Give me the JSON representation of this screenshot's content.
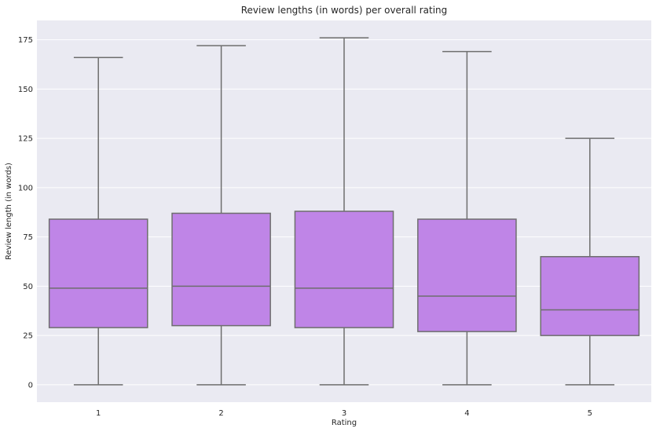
{
  "chart_data": {
    "type": "box",
    "title": "Review lengths (in words) per overall rating",
    "xlabel": "Rating",
    "ylabel": "Review length (in words)",
    "categories": [
      "1",
      "2",
      "3",
      "4",
      "5"
    ],
    "boxes": [
      {
        "category": "1",
        "whisker_low": 0,
        "q1": 29,
        "median": 49,
        "q3": 84,
        "whisker_high": 166
      },
      {
        "category": "2",
        "whisker_low": 0,
        "q1": 30,
        "median": 50,
        "q3": 87,
        "whisker_high": 172
      },
      {
        "category": "3",
        "whisker_low": 0,
        "q1": 29,
        "median": 49,
        "q3": 88,
        "whisker_high": 176
      },
      {
        "category": "4",
        "whisker_low": 0,
        "q1": 27,
        "median": 45,
        "q3": 84,
        "whisker_high": 169
      },
      {
        "category": "5",
        "whisker_low": 0,
        "q1": 25,
        "median": 38,
        "q3": 65,
        "whisker_high": 125
      }
    ],
    "yticks": [
      0,
      25,
      50,
      75,
      100,
      125,
      150,
      175
    ],
    "ylim": [
      -8.8,
      184.8
    ],
    "grid": true,
    "colors": {
      "box_fill": "#bf85e7",
      "line": "#6e6e6e",
      "background": "#eaeaf2",
      "grid": "#ffffff"
    }
  }
}
